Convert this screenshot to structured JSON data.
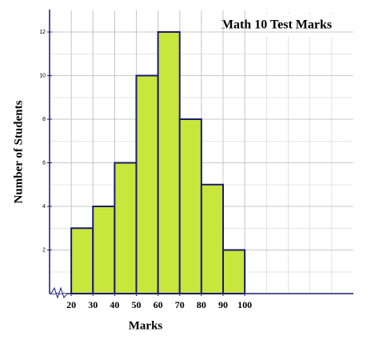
{
  "chart_data": {
    "type": "histogram",
    "title": "Math 10 Test Marks",
    "x_label": "Marks",
    "y_label": "Number of Students",
    "bins": [
      20,
      30,
      40,
      50,
      60,
      70,
      80,
      90,
      100
    ],
    "values": [
      3,
      4,
      6,
      10,
      12,
      8,
      5,
      2
    ],
    "color": "#c8e63c",
    "edge_color": "#1a1a6e",
    "xlim": [
      10,
      150
    ],
    "ylim": [
      0,
      13
    ],
    "xticks": [
      20,
      30,
      40,
      50,
      60,
      70,
      80,
      90,
      100
    ],
    "yticks": [
      2,
      4,
      6,
      8,
      10,
      12
    ],
    "grid": true
  }
}
